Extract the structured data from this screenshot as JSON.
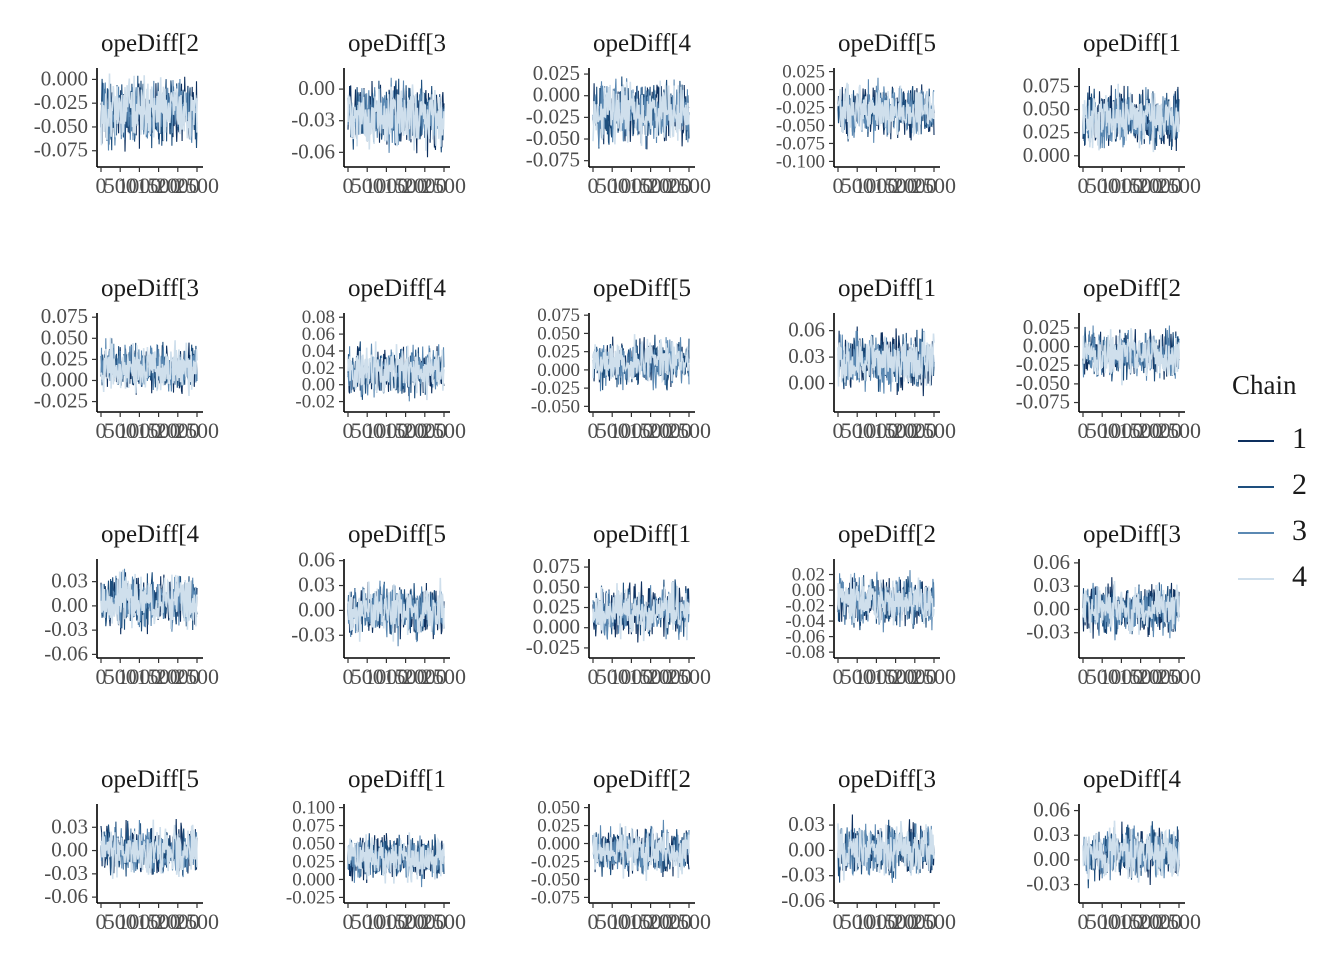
{
  "chart_data": {
    "type": "line",
    "x_range": [
      0,
      2500
    ],
    "x_tick_labels": [
      "0",
      "500",
      "1000",
      "1500",
      "2000",
      "2500"
    ],
    "grid": false,
    "legend_position": "right",
    "legend": {
      "title": "Chain",
      "entries": [
        {
          "label": "1",
          "color": "#0d2f5e"
        },
        {
          "label": "2",
          "color": "#1e4f7e"
        },
        {
          "label": "3",
          "color": "#5b89b3"
        },
        {
          "label": "4",
          "color": "#cfdfec"
        }
      ]
    },
    "panels": [
      {
        "title": "opeDiff[2",
        "ylim": [
          -0.09,
          0.012
        ],
        "center": -0.035,
        "spread": 0.048,
        "ticks": [
          "0.000",
          "-0.025",
          "-0.050",
          "-0.075"
        ]
      },
      {
        "title": "opeDiff[3",
        "ylim": [
          -0.072,
          0.02
        ],
        "center": -0.025,
        "spread": 0.042,
        "ticks": [
          "0.00",
          "-0.03",
          "-0.06"
        ]
      },
      {
        "title": "opeDiff[4",
        "ylim": [
          -0.08,
          0.032
        ],
        "center": -0.02,
        "spread": 0.05,
        "ticks": [
          "0.025",
          "0.000",
          "-0.025",
          "-0.050",
          "-0.075"
        ]
      },
      {
        "title": "opeDiff[5",
        "ylim": [
          -0.105,
          0.03
        ],
        "center": -0.03,
        "spread": 0.05,
        "ticks": [
          "0.025",
          "0.000",
          "-0.025",
          "-0.050",
          "-0.075",
          "-0.100"
        ]
      },
      {
        "title": "opeDiff[1",
        "ylim": [
          -0.01,
          0.095
        ],
        "center": 0.04,
        "spread": 0.045,
        "ticks": [
          "0.075",
          "0.050",
          "0.025",
          "0.000"
        ]
      },
      {
        "title": "opeDiff[3",
        "ylim": [
          -0.035,
          0.08
        ],
        "center": 0.015,
        "spread": 0.04,
        "ticks": [
          "0.075",
          "0.050",
          "0.025",
          "0.000",
          "-0.025"
        ]
      },
      {
        "title": "opeDiff[4",
        "ylim": [
          -0.03,
          0.085
        ],
        "center": 0.015,
        "spread": 0.04,
        "ticks": [
          "0.08",
          "0.06",
          "0.04",
          "0.02",
          "0.00",
          "-0.02"
        ]
      },
      {
        "title": "opeDiff[5",
        "ylim": [
          -0.055,
          0.078
        ],
        "center": 0.01,
        "spread": 0.045,
        "ticks": [
          "0.075",
          "0.050",
          "0.025",
          "0.000",
          "-0.025",
          "-0.050"
        ]
      },
      {
        "title": "opeDiff[1",
        "ylim": [
          -0.03,
          0.08
        ],
        "center": 0.025,
        "spread": 0.045,
        "ticks": [
          "0.06",
          "0.03",
          "0.00"
        ]
      },
      {
        "title": "opeDiff[2",
        "ylim": [
          -0.085,
          0.045
        ],
        "center": -0.01,
        "spread": 0.045,
        "ticks": [
          "0.025",
          "0.000",
          "-0.025",
          "-0.050",
          "-0.075"
        ]
      },
      {
        "title": "opeDiff[4",
        "ylim": [
          -0.062,
          0.058
        ],
        "center": 0.005,
        "spread": 0.045,
        "ticks": [
          "0.03",
          "0.00",
          "-0.03",
          "-0.06"
        ]
      },
      {
        "title": "opeDiff[5",
        "ylim": [
          -0.055,
          0.062
        ],
        "center": 0.0,
        "spread": 0.045,
        "ticks": [
          "0.06",
          "0.03",
          "0.00",
          "-0.03"
        ]
      },
      {
        "title": "opeDiff[1",
        "ylim": [
          -0.035,
          0.085
        ],
        "center": 0.02,
        "spread": 0.045,
        "ticks": [
          "0.075",
          "0.050",
          "0.025",
          "0.000",
          "-0.025"
        ]
      },
      {
        "title": "opeDiff[2",
        "ylim": [
          -0.085,
          0.04
        ],
        "center": -0.015,
        "spread": 0.045,
        "ticks": [
          "0.02",
          "0.00",
          "-0.02",
          "-0.04",
          "-0.06",
          "-0.08"
        ]
      },
      {
        "title": "opeDiff[3",
        "ylim": [
          -0.06,
          0.065
        ],
        "center": 0.0,
        "spread": 0.045,
        "ticks": [
          "0.06",
          "0.03",
          "0.00",
          "-0.03"
        ]
      },
      {
        "title": "opeDiff[5",
        "ylim": [
          -0.065,
          0.06
        ],
        "center": 0.0,
        "spread": 0.045,
        "ticks": [
          "0.03",
          "0.00",
          "-0.03",
          "-0.06"
        ]
      },
      {
        "title": "opeDiff[1",
        "ylim": [
          -0.03,
          0.105
        ],
        "center": 0.03,
        "spread": 0.045,
        "ticks": [
          "0.100",
          "0.075",
          "0.050",
          "0.025",
          "0.000",
          "-0.025"
        ]
      },
      {
        "title": "opeDiff[2",
        "ylim": [
          -0.08,
          0.055
        ],
        "center": -0.01,
        "spread": 0.045,
        "ticks": [
          "0.050",
          "0.025",
          "0.000",
          "-0.025",
          "-0.050",
          "-0.075"
        ]
      },
      {
        "title": "opeDiff[3",
        "ylim": [
          -0.06,
          0.055
        ],
        "center": 0.0,
        "spread": 0.045,
        "ticks": [
          "0.03",
          "0.00",
          "-0.03",
          "-0.06"
        ]
      },
      {
        "title": "opeDiff[4",
        "ylim": [
          -0.05,
          0.068
        ],
        "center": 0.008,
        "spread": 0.045,
        "ticks": [
          "0.06",
          "0.03",
          "0.00",
          "-0.03"
        ]
      }
    ]
  }
}
